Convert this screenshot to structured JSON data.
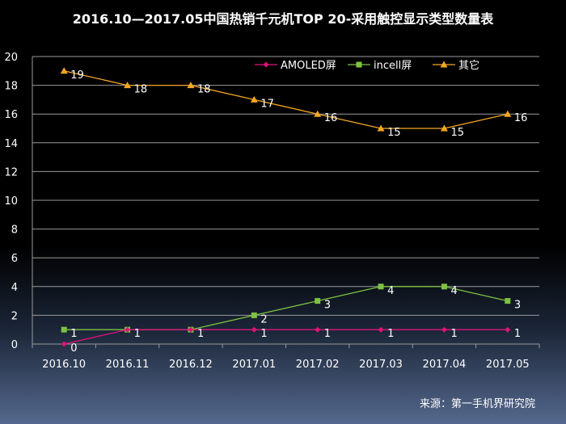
{
  "chart_data": {
    "type": "line",
    "title": "2016.10—2017.05中国热销千元机TOP  20-采用触控显示类型数量表",
    "xlabel": "",
    "ylabel": "",
    "categories": [
      "2016.10",
      "2016.11",
      "2016.12",
      "2017.01",
      "2017.02",
      "2017.03",
      "2017.04",
      "2017.05"
    ],
    "ylim": [
      0,
      20
    ],
    "yticks": [
      0,
      2,
      4,
      6,
      8,
      10,
      12,
      14,
      16,
      18,
      20
    ],
    "grid": true,
    "legend_position": "top-right",
    "series": [
      {
        "name": "AMOLED屏",
        "color": "#e0137b",
        "marker": "diamond",
        "values": [
          0,
          1,
          1,
          1,
          1,
          1,
          1,
          1
        ]
      },
      {
        "name": "incell屏",
        "color": "#7ec242",
        "marker": "square",
        "values": [
          1,
          1,
          1,
          2,
          3,
          4,
          4,
          3
        ]
      },
      {
        "name": "其它",
        "color": "#f5a623",
        "marker": "triangle",
        "values": [
          19,
          18,
          18,
          17,
          16,
          15,
          15,
          16
        ]
      }
    ],
    "data_labels": [
      {
        "x": 0,
        "y": 19,
        "text": "19"
      },
      {
        "x": 1,
        "y": 18,
        "text": "18"
      },
      {
        "x": 2,
        "y": 18,
        "text": "18"
      },
      {
        "x": 3,
        "y": 17,
        "text": "17"
      },
      {
        "x": 4,
        "y": 16,
        "text": "16"
      },
      {
        "x": 5,
        "y": 15,
        "text": "15"
      },
      {
        "x": 6,
        "y": 15,
        "text": "15"
      },
      {
        "x": 7,
        "y": 16,
        "text": "16"
      },
      {
        "x": 0,
        "y": 1,
        "text": "1"
      },
      {
        "x": 1,
        "y": 1,
        "text": "1"
      },
      {
        "x": 2,
        "y": 1,
        "text": "1"
      },
      {
        "x": 3,
        "y": 2,
        "text": "2"
      },
      {
        "x": 4,
        "y": 3,
        "text": "3"
      },
      {
        "x": 5,
        "y": 4,
        "text": "4"
      },
      {
        "x": 6,
        "y": 4,
        "text": "4"
      },
      {
        "x": 7,
        "y": 3,
        "text": "3"
      },
      {
        "x": 0,
        "y": 0,
        "text": "0"
      },
      {
        "x": 3,
        "y": 1,
        "text": "1"
      },
      {
        "x": 4,
        "y": 1,
        "text": "1"
      },
      {
        "x": 5,
        "y": 1,
        "text": "1"
      },
      {
        "x": 6,
        "y": 1,
        "text": "1"
      },
      {
        "x": 7,
        "y": 1,
        "text": "1"
      }
    ]
  },
  "source": "来源：第一手机界研究院"
}
